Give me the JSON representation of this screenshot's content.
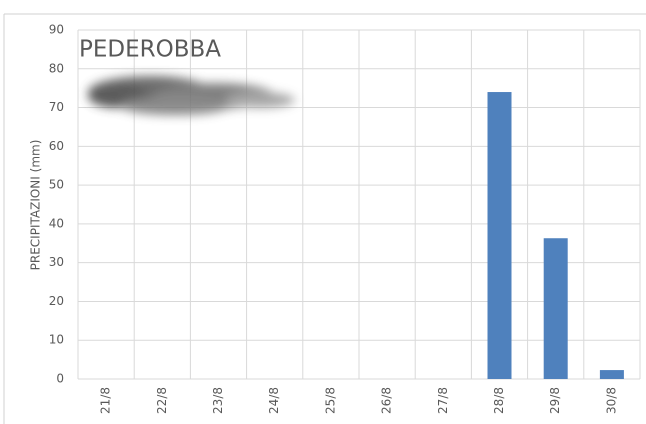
{
  "chart_data": {
    "type": "bar",
    "title": "PEDEROBBA",
    "y_label": "PRECIPITAZIONI (mm)",
    "categories": [
      "21/8",
      "22/8",
      "23/8",
      "24/8",
      "25/8",
      "26/8",
      "27/8",
      "28/8",
      "29/8",
      "30/8"
    ],
    "values": [
      0,
      0,
      0,
      0,
      0,
      0,
      0,
      74,
      36.3,
      2.3
    ],
    "color": "#4f81bd",
    "ylim": [
      0,
      90
    ],
    "yticks": [
      0,
      10,
      20,
      30,
      40,
      50,
      60,
      70,
      80,
      90
    ],
    "grid": true
  }
}
